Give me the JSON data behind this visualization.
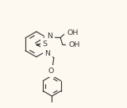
{
  "background_color": "#fdf8f0",
  "line_color": "#3a3a3a",
  "line_width": 0.85,
  "font_size": 6.8,
  "fig_width": 1.6,
  "fig_height": 1.36,
  "dpi": 100,
  "xlim": [
    -0.05,
    1.05
  ],
  "ylim": [
    -0.05,
    1.05
  ]
}
